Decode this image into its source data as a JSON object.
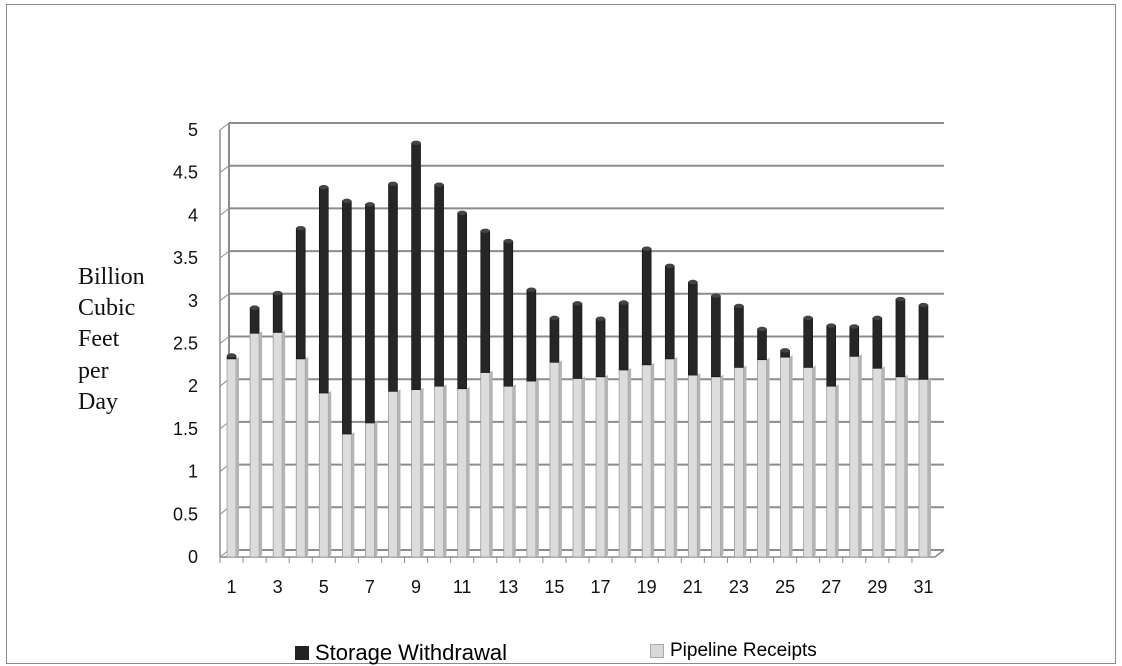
{
  "chart_data": {
    "type": "bar",
    "stacked": true,
    "title": "",
    "xlabel": "",
    "ylabel": [
      "Billion",
      "Cubic",
      "Feet",
      "per",
      "Day"
    ],
    "ylim": [
      0,
      5
    ],
    "yticks": [
      "0",
      "0.5",
      "1",
      "1.5",
      "2",
      "2.5",
      "3",
      "3.5",
      "4",
      "4.5",
      "5"
    ],
    "grid": true,
    "legend_position": "bottom",
    "categories": [
      1,
      2,
      3,
      4,
      5,
      6,
      7,
      8,
      9,
      10,
      11,
      12,
      13,
      14,
      15,
      16,
      17,
      18,
      19,
      20,
      21,
      22,
      23,
      24,
      25,
      26,
      27,
      28,
      29,
      30,
      31
    ],
    "xticks_shown": [
      "1",
      "3",
      "5",
      "7",
      "9",
      "11",
      "13",
      "15",
      "17",
      "19",
      "21",
      "23",
      "25",
      "27",
      "29",
      "31"
    ],
    "series": [
      {
        "name": "Pipeline Receipts",
        "color": "#d8d8d8",
        "values": [
          2.32,
          2.62,
          2.63,
          2.32,
          1.92,
          1.44,
          1.57,
          1.94,
          1.96,
          2.0,
          1.97,
          2.16,
          2.0,
          2.06,
          2.28,
          2.09,
          2.11,
          2.19,
          2.25,
          2.32,
          2.13,
          2.11,
          2.22,
          2.31,
          2.34,
          2.22,
          2.0,
          2.35,
          2.21,
          2.11,
          2.08
        ]
      },
      {
        "name": "Storage Withdrawal",
        "color": "#222222",
        "values": [
          0.04,
          0.3,
          0.46,
          1.53,
          2.41,
          2.73,
          2.56,
          2.43,
          2.89,
          2.36,
          2.06,
          1.66,
          1.7,
          1.07,
          0.52,
          0.88,
          0.68,
          0.79,
          1.36,
          1.09,
          1.09,
          0.95,
          0.72,
          0.36,
          0.08,
          0.58,
          0.71,
          0.35,
          0.59,
          0.91,
          0.87
        ]
      }
    ],
    "legend": [
      {
        "label": "Storage Withdrawal",
        "color": "#222222"
      },
      {
        "label": "Pipeline Receipts",
        "color": "#d8d8d8"
      }
    ]
  }
}
